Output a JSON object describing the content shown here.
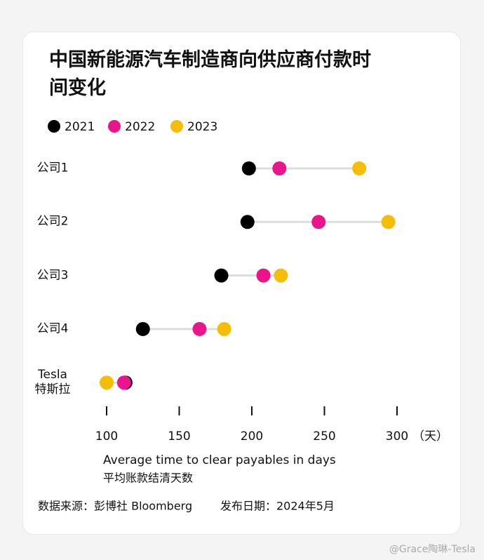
{
  "chart_data": {
    "type": "dumbbell",
    "title": "中国新能源汽车制造商向供应商付款时间变化",
    "categories": [
      "公司1",
      "公司2",
      "公司3",
      "公司4",
      "Tesla\n特斯拉"
    ],
    "series": [
      {
        "name": "2021",
        "color": "#000000",
        "values": [
          198,
          197,
          179,
          125,
          113
        ]
      },
      {
        "name": "2022",
        "color": "#ea148c",
        "values": [
          219,
          246,
          208,
          164,
          112
        ]
      },
      {
        "name": "2023",
        "color": "#f5bd06",
        "values": [
          274,
          294,
          220,
          181,
          100
        ]
      }
    ],
    "xlim": [
      100,
      300
    ],
    "xticks": [
      100,
      150,
      200,
      250,
      300
    ],
    "x_unit_label": "（天）",
    "x_label": "Average time to clear payables in days",
    "x_label_cn": "平均账款结清天数",
    "source": "数据来源：彭博社 Bloomberg",
    "date": "发布日期：2024年5月",
    "watermark": "@Grace陶琳-Tesla"
  }
}
